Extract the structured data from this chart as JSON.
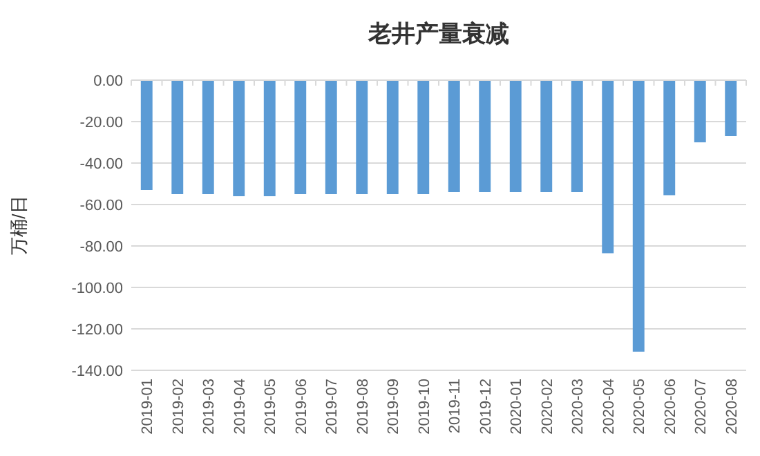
{
  "chart_data": {
    "type": "bar",
    "title": "老井产量衰减",
    "ylabel": "万桶/日",
    "categories": [
      "2019-01",
      "2019-02",
      "2019-03",
      "2019-04",
      "2019-05",
      "2019-06",
      "2019-07",
      "2019-08",
      "2019-09",
      "2019-10",
      "2019-11",
      "2019-12",
      "2020-01",
      "2020-02",
      "2020-03",
      "2020-04",
      "2020-05",
      "2020-06",
      "2020-07",
      "2020-08"
    ],
    "values": [
      -53,
      -55,
      -55,
      -56,
      -56,
      -55,
      -55,
      -55,
      -55,
      -55,
      -54,
      -54,
      -54,
      -54,
      -54,
      -83.5,
      -131,
      -55.5,
      -30,
      -27
    ],
    "color": "#5b9bd5",
    "ylim": [
      -140,
      0
    ],
    "yticks": [
      {
        "value": 0,
        "label": "0.00"
      },
      {
        "value": -20,
        "label": "-20.00"
      },
      {
        "value": -40,
        "label": "-40.00"
      },
      {
        "value": -60,
        "label": "-60.00"
      },
      {
        "value": -80,
        "label": "-80.00"
      },
      {
        "value": -100,
        "label": "-100.00"
      },
      {
        "value": -120,
        "label": "-120.00"
      },
      {
        "value": -140,
        "label": "-140.00"
      }
    ],
    "grid": "y"
  }
}
